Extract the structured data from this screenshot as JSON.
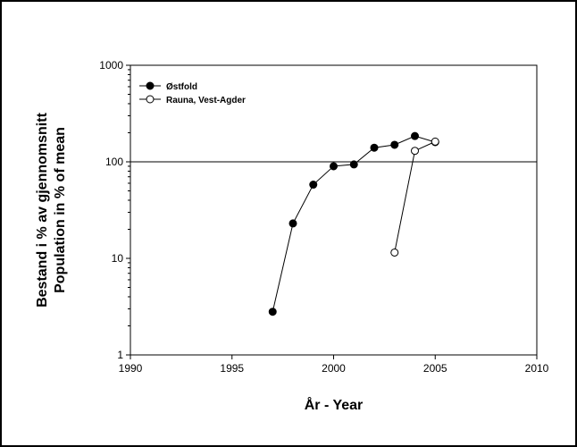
{
  "chart_data": {
    "type": "scatter",
    "x_scale": "linear",
    "y_scale": "log",
    "xlim": [
      1990,
      2010
    ],
    "ylim": [
      1,
      1000
    ],
    "x_ticks": [
      "1990",
      "1995",
      "2000",
      "2005",
      "2010"
    ],
    "y_ticks": [
      "1",
      "10",
      "100",
      "1000"
    ],
    "xlabel": "År -  Year",
    "ylabel_line1": "Bestand i % av gjennomsnitt",
    "ylabel_line2": "Population in % of mean",
    "reference_line": 100,
    "grid": false,
    "legend_position": "top-left",
    "series": [
      {
        "name": "Østfold",
        "marker": "filled-circle",
        "color": "#000000",
        "points": [
          {
            "x": 1997,
            "y": 2.8
          },
          {
            "x": 1998,
            "y": 23
          },
          {
            "x": 1999,
            "y": 58
          },
          {
            "x": 2000,
            "y": 90
          },
          {
            "x": 2001,
            "y": 94
          },
          {
            "x": 2002,
            "y": 140
          },
          {
            "x": 2003,
            "y": 150
          },
          {
            "x": 2004,
            "y": 185
          },
          {
            "x": 2005,
            "y": 160
          }
        ]
      },
      {
        "name": "Rauna, Vest-Agder",
        "marker": "open-circle",
        "color": "#000000",
        "points": [
          {
            "x": 2003,
            "y": 11.5
          },
          {
            "x": 2004,
            "y": 130
          },
          {
            "x": 2005,
            "y": 162
          }
        ]
      }
    ]
  }
}
